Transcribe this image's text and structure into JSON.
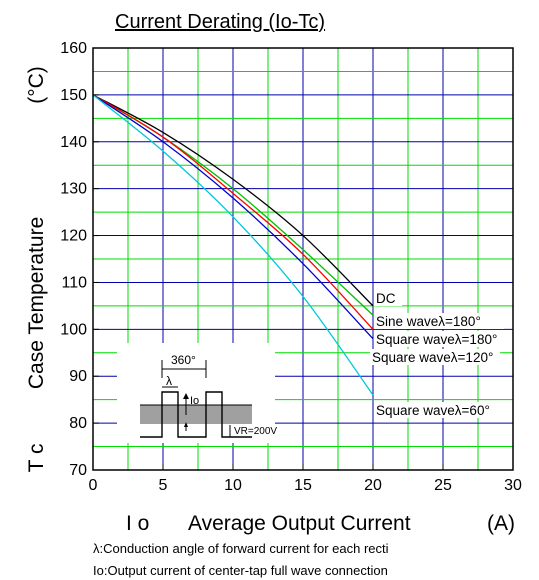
{
  "chart_data": {
    "type": "line",
    "title": "Current Derating  (Io-Tc)",
    "xlabel": {
      "prefix": "I o",
      "name": "Average Output Current",
      "unit": "(A)"
    },
    "ylabel": {
      "prefix": "T c",
      "name": "Case Temperature",
      "unit": "(°C)"
    },
    "xlim": [
      0,
      30
    ],
    "ylim": [
      70,
      160
    ],
    "x_ticks": [
      0,
      5,
      10,
      15,
      20,
      25,
      30
    ],
    "y_ticks": [
      70,
      80,
      90,
      100,
      110,
      120,
      130,
      140,
      150,
      160
    ],
    "x_major_grid": [
      5,
      10,
      15,
      20,
      25
    ],
    "x_minor_grid": [
      2.5,
      7.5,
      12.5,
      17.5,
      22.5,
      27.5
    ],
    "y_grid": [
      80,
      90,
      100,
      110,
      120,
      130,
      140,
      150
    ],
    "series": [
      {
        "name": "DC",
        "color": "#000000",
        "x": [
          0,
          5,
          10,
          15,
          20
        ],
        "y": [
          150,
          142,
          132,
          120,
          105
        ]
      },
      {
        "name": "Sine waveλ=180°",
        "color": "#00c000",
        "x": [
          0,
          5,
          10,
          15,
          20
        ],
        "y": [
          150,
          141,
          130,
          117,
          103
        ]
      },
      {
        "name": "Square waveλ=180°",
        "color": "#ff0000",
        "x": [
          0,
          5,
          10,
          15,
          20
        ],
        "y": [
          150,
          141,
          129,
          116,
          100
        ]
      },
      {
        "name": "Square waveλ=120°",
        "color": "#0000cc",
        "x": [
          0,
          5,
          10,
          15,
          20
        ],
        "y": [
          150,
          140,
          128,
          114,
          98
        ]
      },
      {
        "name": "Square waveλ=60°",
        "color": "#00c8d8",
        "x": [
          0,
          5,
          10,
          15,
          20
        ],
        "y": [
          150,
          138,
          124,
          107,
          86
        ]
      }
    ],
    "annotations": [
      "DC",
      "Sine waveλ=180°",
      "Square waveλ=180°",
      "Square waveλ=120°",
      "Square waveλ=60°"
    ],
    "inset": {
      "period_label": "360°",
      "lambda_label": "λ",
      "current_label": "Io",
      "voltage_label": "VR=200V"
    },
    "footnotes": [
      "λ:Conduction angle of forward current for each recti",
      "Io:Output current of center-tap full wave connection"
    ],
    "colors": {
      "grid_major": "#0000aa",
      "grid_minor": "#00dd00",
      "axes": "#000000"
    },
    "grid": true
  }
}
